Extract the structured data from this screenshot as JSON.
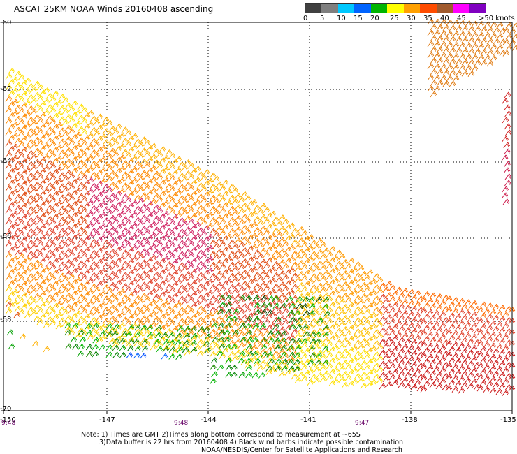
{
  "title": "ASCAT 25KM NOAA Winds 20160408 ascending",
  "legend": {
    "labels": [
      "0",
      "5",
      "10",
      "15",
      "20",
      "25",
      "30",
      "35",
      "40",
      "45",
      ">50 knots"
    ],
    "colors": [
      "#404040",
      "#7f7f7f",
      "#00c8ff",
      "#0064ff",
      "#00b400",
      "#ffff00",
      "#ffa000",
      "#ff4c00",
      "#a05a2d",
      "#ff00ff",
      "#8000c0"
    ]
  },
  "axes": {
    "lat_labels": [
      "-60",
      "-62",
      "-64",
      "-66",
      "-68",
      "-70"
    ],
    "lon_labels": [
      "-150",
      "-147",
      "-144",
      "-141",
      "-138",
      "-135"
    ]
  },
  "times": [
    "9:48",
    "9:48",
    "9:47"
  ],
  "notes": [
    "Note: 1) Times are GMT 2)Times along bottom correspond to measurement at ~65S",
    "3)Data buffer is 22 hrs from 20160408 4) Black wind barbs indicate possible contamination",
    "NOAA/NESDIS/Center for Satellite Applications and Research"
  ]
}
